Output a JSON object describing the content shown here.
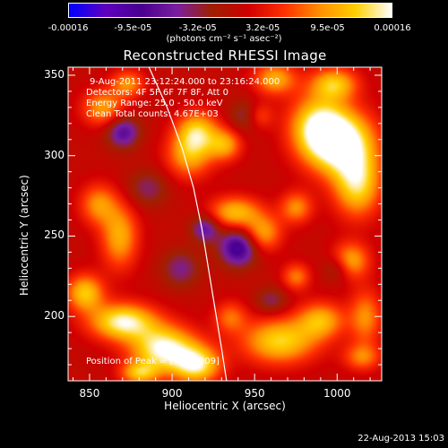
{
  "colorbar": {
    "ticks": [
      "-0.00016",
      "-9.5e-05",
      "-3.2e-05",
      "3.2e-05",
      "9.5e-05",
      "0.00016"
    ],
    "units_label": "(photons cm⁻² s⁻¹ asec⁻²)"
  },
  "info_lines": [
    "9-Aug-2011 23:12:24.000 to 23:16:24.000",
    "Detectors: 4F 5F 6F 7F 8F, Att 0",
    "Energy Range: 25.0 - 50.0 keV",
    "Clean    Total counts: 4.67E+03"
  ],
  "peak_label": "Position of Peak = [1006,309]",
  "timestamp": "22-Aug-2013 15:03",
  "chart_data": {
    "type": "heatmap",
    "title": "Reconstructed RHESSI Image",
    "xlabel": "Heliocentric X (arcsec)",
    "ylabel": "Heliocentric Y (arcsec)",
    "xlim": [
      837,
      1027
    ],
    "ylim": [
      160,
      355
    ],
    "xticks": [
      850,
      900,
      950,
      1000
    ],
    "yticks": [
      200,
      250,
      300,
      350
    ],
    "colorscale": {
      "min": -0.00016,
      "max": 0.00016,
      "colors": [
        "#0000ff",
        "#6000c0",
        "#4a0090",
        "#7a1fa0",
        "#a02000",
        "#d00000",
        "#ff3000",
        "#ff9000",
        "#ffd000",
        "#ffffff"
      ]
    },
    "peak": [
      1006,
      309
    ],
    "blobs": [
      {
        "x": 1003,
        "y": 308,
        "sx": 14,
        "sy": 14,
        "v": 1.0
      },
      {
        "x": 988,
        "y": 318,
        "sx": 12,
        "sy": 14,
        "v": 0.8
      },
      {
        "x": 1012,
        "y": 282,
        "sx": 10,
        "sy": 14,
        "v": 0.75
      },
      {
        "x": 915,
        "y": 315,
        "sx": 9,
        "sy": 9,
        "v": 0.7
      },
      {
        "x": 910,
        "y": 300,
        "sx": 10,
        "sy": 10,
        "v": 0.55
      },
      {
        "x": 932,
        "y": 307,
        "sx": 7,
        "sy": 7,
        "v": 0.55
      },
      {
        "x": 962,
        "y": 348,
        "sx": 9,
        "sy": 7,
        "v": 0.6
      },
      {
        "x": 952,
        "y": 325,
        "sx": 6,
        "sy": 6,
        "v": 0.4
      },
      {
        "x": 870,
        "y": 197,
        "sx": 14,
        "sy": 8,
        "v": 0.9
      },
      {
        "x": 895,
        "y": 180,
        "sx": 14,
        "sy": 10,
        "v": 0.95
      },
      {
        "x": 915,
        "y": 170,
        "sx": 10,
        "sy": 8,
        "v": 0.8
      },
      {
        "x": 847,
        "y": 215,
        "sx": 8,
        "sy": 8,
        "v": 0.7
      },
      {
        "x": 868,
        "y": 250,
        "sx": 8,
        "sy": 14,
        "v": 0.6
      },
      {
        "x": 855,
        "y": 270,
        "sx": 8,
        "sy": 9,
        "v": 0.5
      },
      {
        "x": 858,
        "y": 330,
        "sx": 9,
        "sy": 8,
        "v": 0.55
      },
      {
        "x": 873,
        "y": 345,
        "sx": 7,
        "sy": 6,
        "v": 0.5
      },
      {
        "x": 938,
        "y": 265,
        "sx": 11,
        "sy": 7,
        "v": 0.65
      },
      {
        "x": 955,
        "y": 252,
        "sx": 8,
        "sy": 8,
        "v": 0.55
      },
      {
        "x": 975,
        "y": 268,
        "sx": 7,
        "sy": 7,
        "v": 0.5
      },
      {
        "x": 965,
        "y": 185,
        "sx": 16,
        "sy": 10,
        "v": 0.75
      },
      {
        "x": 990,
        "y": 198,
        "sx": 10,
        "sy": 8,
        "v": 0.6
      },
      {
        "x": 1008,
        "y": 235,
        "sx": 8,
        "sy": 8,
        "v": 0.6
      },
      {
        "x": 1017,
        "y": 200,
        "sx": 7,
        "sy": 12,
        "v": 0.5
      },
      {
        "x": 1015,
        "y": 175,
        "sx": 8,
        "sy": 6,
        "v": 0.45
      },
      {
        "x": 935,
        "y": 200,
        "sx": 7,
        "sy": 7,
        "v": 0.4
      },
      {
        "x": 975,
        "y": 225,
        "sx": 6,
        "sy": 6,
        "v": 0.45
      },
      {
        "x": 880,
        "y": 165,
        "sx": 8,
        "sy": 5,
        "v": 0.6
      },
      {
        "x": 998,
        "y": 345,
        "sx": 10,
        "sy": 7,
        "v": 0.65
      },
      {
        "x": 940,
        "y": 243,
        "sx": 8,
        "sy": 8,
        "v": -0.7
      },
      {
        "x": 920,
        "y": 255,
        "sx": 6,
        "sy": 6,
        "v": -0.5
      },
      {
        "x": 870,
        "y": 315,
        "sx": 7,
        "sy": 7,
        "v": -0.55
      },
      {
        "x": 905,
        "y": 230,
        "sx": 8,
        "sy": 8,
        "v": -0.35
      },
      {
        "x": 945,
        "y": 325,
        "sx": 7,
        "sy": 7,
        "v": -0.35
      },
      {
        "x": 1000,
        "y": 230,
        "sx": 6,
        "sy": 6,
        "v": -0.3
      },
      {
        "x": 885,
        "y": 280,
        "sx": 9,
        "sy": 8,
        "v": -0.3
      },
      {
        "x": 960,
        "y": 210,
        "sx": 7,
        "sy": 6,
        "v": -0.3
      }
    ],
    "limb_curve": [
      [
        886,
        355
      ],
      [
        897,
        330
      ],
      [
        906,
        305
      ],
      [
        913,
        280
      ],
      [
        918,
        255
      ],
      [
        922,
        230
      ],
      [
        926,
        205
      ],
      [
        930,
        180
      ],
      [
        933,
        160
      ]
    ]
  }
}
